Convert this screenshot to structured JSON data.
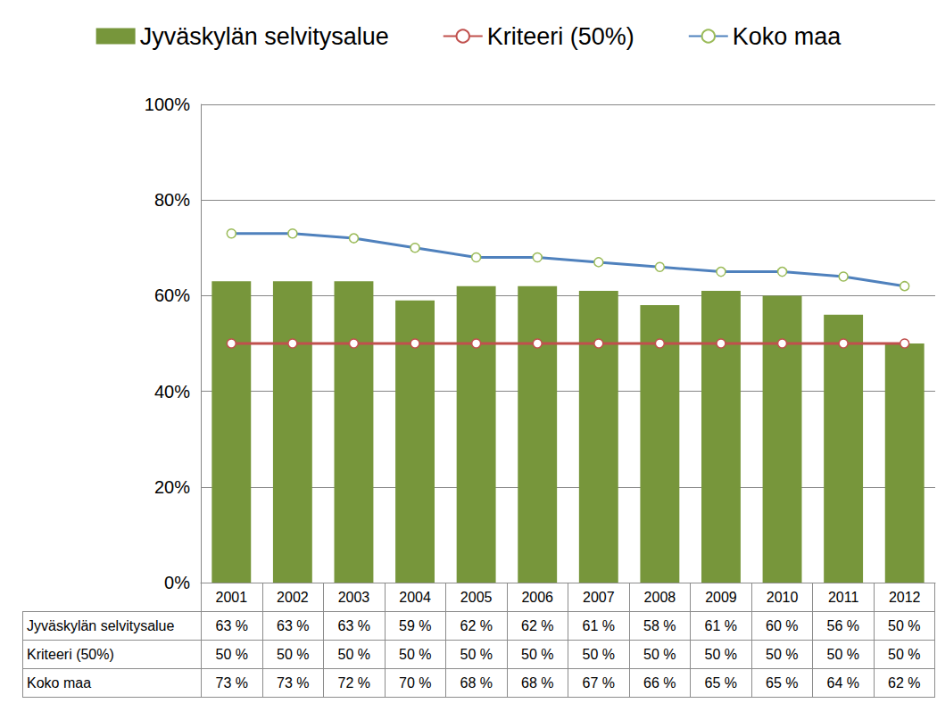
{
  "chart_data": {
    "type": "bar",
    "categories": [
      "2001",
      "2002",
      "2003",
      "2004",
      "2005",
      "2006",
      "2007",
      "2008",
      "2009",
      "2010",
      "2011",
      "2012"
    ],
    "series": [
      {
        "name": "Jyväskylän selvitysalue",
        "type": "bar",
        "color": "#77963b",
        "values": [
          63,
          63,
          63,
          59,
          62,
          62,
          61,
          58,
          61,
          60,
          56,
          50
        ],
        "value_labels": [
          "63 %",
          "63 %",
          "63 %",
          "59 %",
          "62 %",
          "62 %",
          "61 %",
          "58 %",
          "61 %",
          "60 %",
          "56 %",
          "50 %"
        ]
      },
      {
        "name": "Kriteeri (50%)",
        "type": "line",
        "color": "#c0504d",
        "marker": "circle",
        "values": [
          50,
          50,
          50,
          50,
          50,
          50,
          50,
          50,
          50,
          50,
          50,
          50
        ],
        "value_labels": [
          "50 %",
          "50 %",
          "50 %",
          "50 %",
          "50 %",
          "50 %",
          "50 %",
          "50 %",
          "50 %",
          "50 %",
          "50 %",
          "50 %"
        ]
      },
      {
        "name": "Koko maa",
        "type": "line",
        "color": "#4f81bd",
        "marker": "circle",
        "values": [
          73,
          73,
          72,
          70,
          68,
          68,
          67,
          66,
          65,
          65,
          64,
          62
        ],
        "value_labels": [
          "73 %",
          "73 %",
          "72 %",
          "70 %",
          "68 %",
          "68 %",
          "67 %",
          "66 %",
          "65 %",
          "65 %",
          "64 %",
          "62 %"
        ]
      }
    ],
    "ylim": [
      0,
      100
    ],
    "yticks": [
      {
        "value": 0,
        "label": "0%"
      },
      {
        "value": 20,
        "label": "20%"
      },
      {
        "value": 40,
        "label": "40%"
      },
      {
        "value": 60,
        "label": "60%"
      },
      {
        "value": 80,
        "label": "80%"
      },
      {
        "value": 100,
        "label": "100%"
      }
    ],
    "grid": true,
    "legend": "top"
  }
}
